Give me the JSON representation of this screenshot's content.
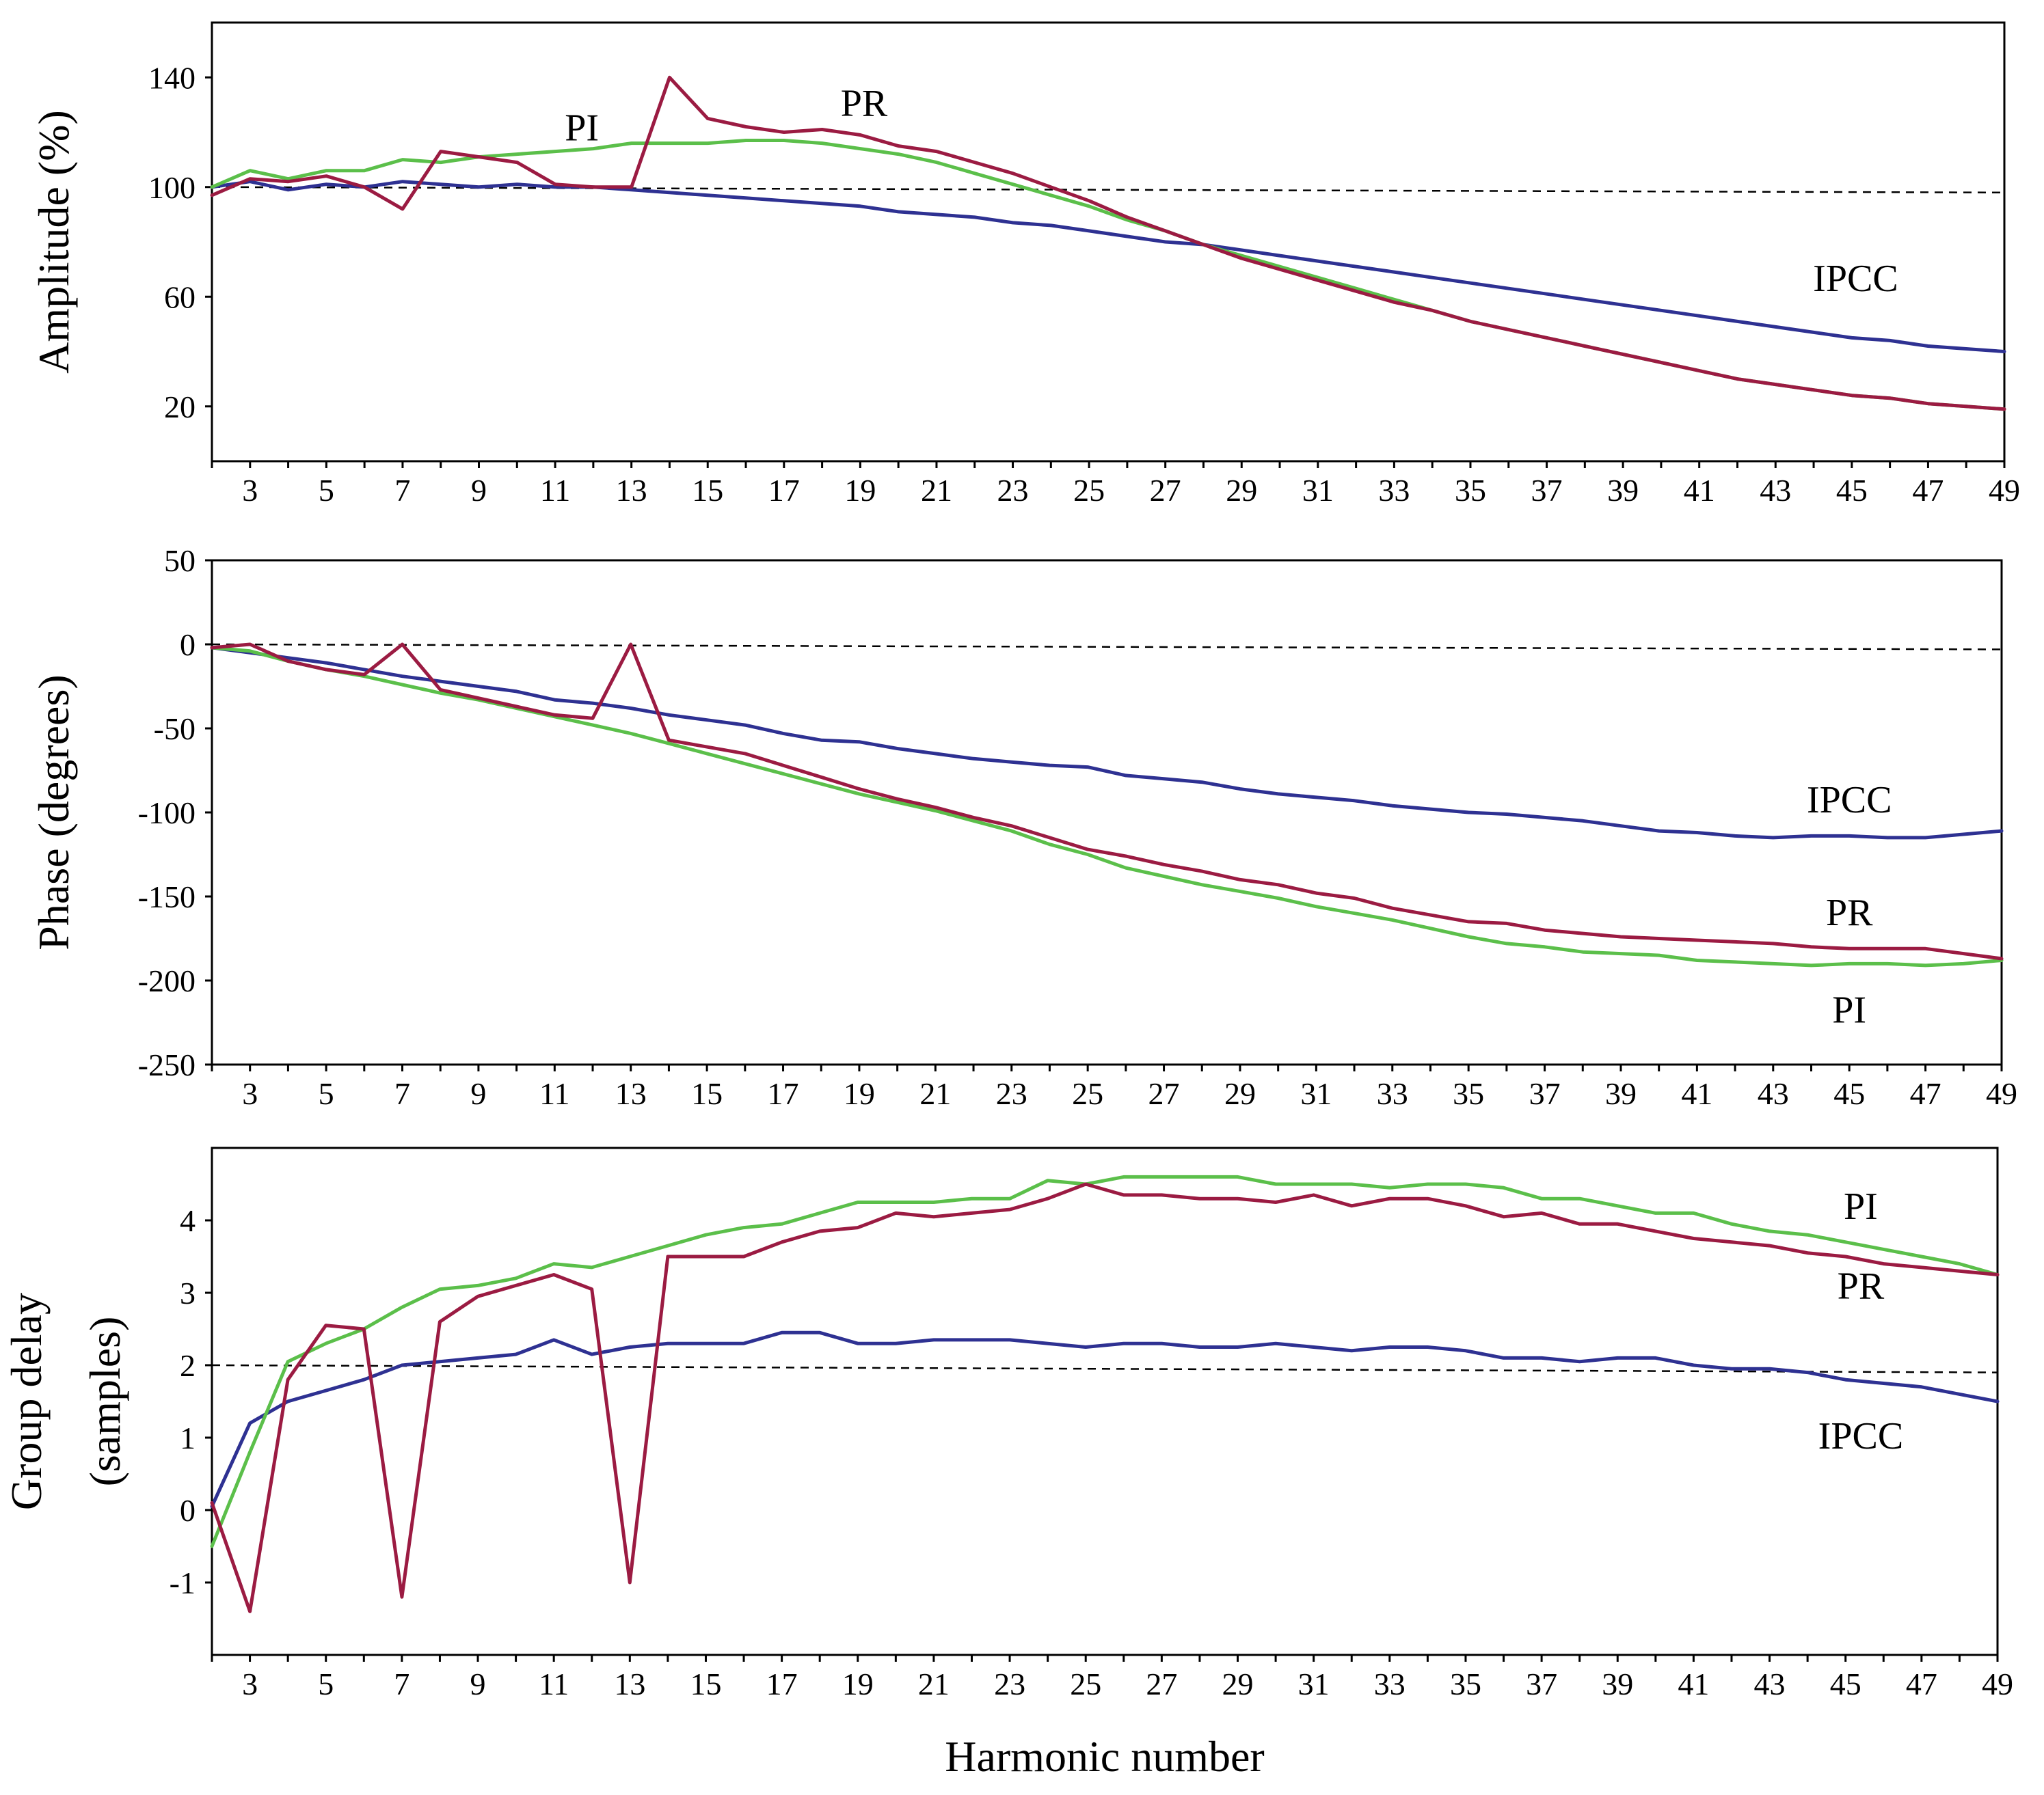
{
  "colors": {
    "IPCC": "#2e3192",
    "PI": "#5bbf4a",
    "PR": "#9b1b42",
    "axis": "#000000",
    "background": "#ffffff"
  },
  "chart_data": [
    {
      "id": "amplitude",
      "type": "line",
      "xlabel": "",
      "ylabel": "Amplitude (%)",
      "xlim": [
        2,
        49
      ],
      "ylim": [
        0,
        160
      ],
      "yticks": [
        20,
        60,
        100,
        140
      ],
      "xticks": [
        3,
        5,
        7,
        9,
        11,
        13,
        15,
        17,
        19,
        21,
        23,
        25,
        27,
        29,
        31,
        33,
        35,
        37,
        39,
        41,
        43,
        45,
        47,
        49
      ],
      "reference_line": {
        "y_start": 100,
        "y_end": 98
      },
      "x": [
        2,
        3,
        4,
        5,
        6,
        7,
        8,
        9,
        10,
        11,
        12,
        13,
        14,
        15,
        16,
        17,
        18,
        19,
        20,
        21,
        22,
        23,
        24,
        25,
        26,
        27,
        28,
        29,
        30,
        31,
        32,
        33,
        34,
        35,
        36,
        37,
        38,
        39,
        40,
        41,
        42,
        43,
        44,
        45,
        46,
        47,
        48,
        49
      ],
      "series": [
        {
          "name": "IPCC",
          "label": "IPCC",
          "color_key": "IPCC",
          "values": [
            100,
            102,
            99,
            101,
            100,
            102,
            101,
            100,
            101,
            100,
            100,
            99,
            98,
            97,
            96,
            95,
            94,
            93,
            91,
            90,
            89,
            87,
            86,
            84,
            82,
            80,
            79,
            77,
            75,
            73,
            71,
            69,
            67,
            65,
            63,
            61,
            59,
            57,
            55,
            53,
            51,
            49,
            47,
            45,
            44,
            42,
            41,
            40
          ]
        },
        {
          "name": "PI",
          "label": "PI",
          "color_key": "PI",
          "values": [
            100,
            106,
            103,
            106,
            106,
            110,
            109,
            111,
            112,
            113,
            114,
            116,
            116,
            116,
            117,
            117,
            116,
            114,
            112,
            109,
            105,
            101,
            97,
            93,
            88,
            84,
            79,
            75,
            71,
            67,
            63,
            59,
            55,
            51,
            48,
            45,
            42,
            39,
            36,
            33,
            30,
            28,
            26,
            24,
            23,
            21,
            20,
            19
          ]
        },
        {
          "name": "PR",
          "label": "PR",
          "color_key": "PR",
          "values": [
            97,
            103,
            102,
            104,
            100,
            92,
            113,
            111,
            109,
            101,
            100,
            100,
            140,
            125,
            122,
            120,
            121,
            119,
            115,
            113,
            109,
            105,
            100,
            95,
            89,
            84,
            79,
            74,
            70,
            66,
            62,
            58,
            55,
            51,
            48,
            45,
            42,
            39,
            36,
            33,
            30,
            28,
            26,
            24,
            23,
            21,
            20,
            19
          ]
        }
      ]
    },
    {
      "id": "phase",
      "type": "line",
      "xlabel": "",
      "ylabel": "Phase (degrees)",
      "xlim": [
        2,
        49
      ],
      "ylim": [
        -250,
        50
      ],
      "yticks": [
        -250,
        -200,
        -150,
        -100,
        -50,
        0,
        50
      ],
      "xticks": [
        3,
        5,
        7,
        9,
        11,
        13,
        15,
        17,
        19,
        21,
        23,
        25,
        27,
        29,
        31,
        33,
        35,
        37,
        39,
        41,
        43,
        45,
        47,
        49
      ],
      "reference_line": {
        "y_start": 0,
        "y_end": -3
      },
      "x": [
        2,
        3,
        4,
        5,
        6,
        7,
        8,
        9,
        10,
        11,
        12,
        13,
        14,
        15,
        16,
        17,
        18,
        19,
        20,
        21,
        22,
        23,
        24,
        25,
        26,
        27,
        28,
        29,
        30,
        31,
        32,
        33,
        34,
        35,
        36,
        37,
        38,
        39,
        40,
        41,
        42,
        43,
        44,
        45,
        46,
        47,
        48,
        49
      ],
      "series": [
        {
          "name": "IPCC",
          "label": "IPCC",
          "color_key": "IPCC",
          "values": [
            -2,
            -5,
            -8,
            -11,
            -15,
            -19,
            -22,
            -25,
            -28,
            -33,
            -35,
            -38,
            -42,
            -45,
            -48,
            -53,
            -57,
            -58,
            -62,
            -65,
            -68,
            -70,
            -72,
            -73,
            -78,
            -80,
            -82,
            -86,
            -89,
            -91,
            -93,
            -96,
            -98,
            -100,
            -101,
            -103,
            -105,
            -108,
            -111,
            -112,
            -114,
            -115,
            -114,
            -114,
            -115,
            -115,
            -113,
            -111
          ]
        },
        {
          "name": "PI",
          "label": "PI",
          "color_key": "PI",
          "values": [
            -2,
            -4,
            -10,
            -15,
            -19,
            -24,
            -29,
            -33,
            -38,
            -43,
            -48,
            -53,
            -59,
            -65,
            -71,
            -77,
            -83,
            -89,
            -94,
            -99,
            -105,
            -111,
            -119,
            -125,
            -133,
            -138,
            -143,
            -147,
            -151,
            -156,
            -160,
            -164,
            -169,
            -174,
            -178,
            -180,
            -183,
            -184,
            -185,
            -188,
            -189,
            -190,
            -191,
            -190,
            -190,
            -191,
            -190,
            -188
          ]
        },
        {
          "name": "PR",
          "label": "PR",
          "color_key": "PR",
          "values": [
            -2,
            0,
            -10,
            -15,
            -18,
            0,
            -27,
            -32,
            -37,
            -42,
            -44,
            0,
            -57,
            -61,
            -65,
            -72,
            -79,
            -86,
            -92,
            -97,
            -103,
            -108,
            -115,
            -122,
            -126,
            -131,
            -135,
            -140,
            -143,
            -148,
            -151,
            -157,
            -161,
            -165,
            -166,
            -170,
            -172,
            -174,
            -175,
            -176,
            -177,
            -178,
            -180,
            -181,
            -181,
            -181,
            -184,
            -187
          ]
        }
      ]
    },
    {
      "id": "group-delay",
      "type": "line",
      "xlabel": "Harmonic number",
      "ylabel": [
        "Group delay",
        "(samples)"
      ],
      "xlim": [
        2,
        49
      ],
      "ylim": [
        -2,
        5
      ],
      "yticks": [
        -1,
        0,
        1,
        2,
        3,
        4
      ],
      "xticks": [
        3,
        5,
        7,
        9,
        11,
        13,
        15,
        17,
        19,
        21,
        23,
        25,
        27,
        29,
        31,
        33,
        35,
        37,
        39,
        41,
        43,
        45,
        47,
        49
      ],
      "reference_line": {
        "y_start": 2,
        "y_end": 1.9
      },
      "x": [
        2,
        3,
        4,
        5,
        6,
        7,
        8,
        9,
        10,
        11,
        12,
        13,
        14,
        15,
        16,
        17,
        18,
        19,
        20,
        21,
        22,
        23,
        24,
        25,
        26,
        27,
        28,
        29,
        30,
        31,
        32,
        33,
        34,
        35,
        36,
        37,
        38,
        39,
        40,
        41,
        42,
        43,
        44,
        45,
        46,
        47,
        48,
        49
      ],
      "series": [
        {
          "name": "IPCC",
          "label": "IPCC",
          "color_key": "IPCC",
          "values": [
            0.05,
            1.2,
            1.5,
            1.65,
            1.8,
            2.0,
            2.05,
            2.1,
            2.15,
            2.35,
            2.15,
            2.25,
            2.3,
            2.3,
            2.3,
            2.45,
            2.45,
            2.3,
            2.3,
            2.35,
            2.35,
            2.35,
            2.3,
            2.25,
            2.3,
            2.3,
            2.25,
            2.25,
            2.3,
            2.25,
            2.2,
            2.25,
            2.25,
            2.2,
            2.1,
            2.1,
            2.05,
            2.1,
            2.1,
            2.0,
            1.95,
            1.95,
            1.9,
            1.8,
            1.75,
            1.7,
            1.6,
            1.5
          ]
        },
        {
          "name": "PI",
          "label": "PI",
          "color_key": "PI",
          "values": [
            -0.5,
            0.8,
            2.05,
            2.3,
            2.5,
            2.8,
            3.05,
            3.1,
            3.2,
            3.4,
            3.35,
            3.5,
            3.65,
            3.8,
            3.9,
            3.95,
            4.1,
            4.25,
            4.25,
            4.25,
            4.3,
            4.3,
            4.55,
            4.5,
            4.6,
            4.6,
            4.6,
            4.6,
            4.5,
            4.5,
            4.5,
            4.45,
            4.5,
            4.5,
            4.45,
            4.3,
            4.3,
            4.2,
            4.1,
            4.1,
            3.95,
            3.85,
            3.8,
            3.7,
            3.6,
            3.5,
            3.4,
            3.25
          ]
        },
        {
          "name": "PR",
          "label": "PR",
          "color_key": "PR",
          "values": [
            0.1,
            -1.4,
            1.8,
            2.55,
            2.5,
            -1.2,
            2.6,
            2.95,
            3.1,
            3.25,
            3.05,
            -1.0,
            3.5,
            3.5,
            3.5,
            3.7,
            3.85,
            3.9,
            4.1,
            4.05,
            4.1,
            4.15,
            4.3,
            4.5,
            4.35,
            4.35,
            4.3,
            4.3,
            4.25,
            4.35,
            4.2,
            4.3,
            4.3,
            4.2,
            4.05,
            4.1,
            3.95,
            3.95,
            3.85,
            3.75,
            3.7,
            3.65,
            3.55,
            3.5,
            3.4,
            3.35,
            3.3,
            3.25
          ]
        }
      ]
    }
  ]
}
